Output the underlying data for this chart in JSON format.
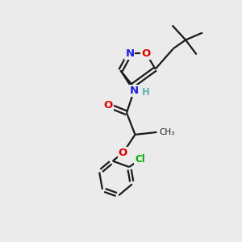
{
  "background_color": "#ebebeb",
  "bond_color": "#1a1a1a",
  "bond_width": 1.6,
  "atom_colors": {
    "O": "#e00000",
    "N": "#2020e0",
    "Cl": "#00aa00",
    "H": "#6aadad",
    "C": "#1a1a1a"
  },
  "figsize": [
    3.0,
    3.0
  ],
  "dpi": 100
}
